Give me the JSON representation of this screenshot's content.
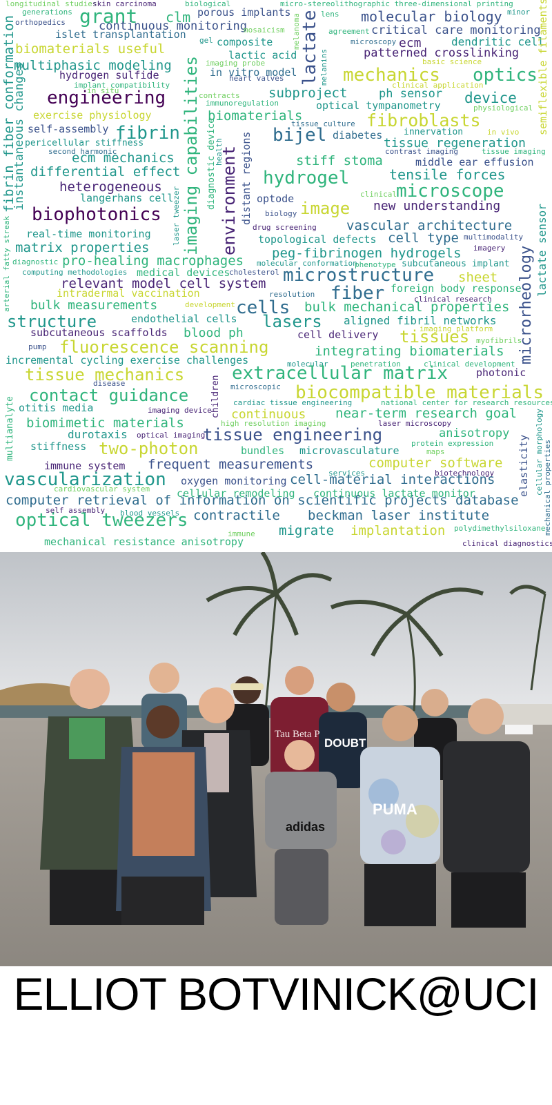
{
  "caption": "ELLIOT BOTVINICK@UCI",
  "photo": {
    "shirt_texts": [
      "Tau Beta P",
      "DOUBT",
      "adidas",
      "PUMA"
    ]
  },
  "palette": {
    "yellow": "#c8d632",
    "light_green": "#6fcf5f",
    "green": "#2fb47c",
    "teal": "#1f968b",
    "blue": "#2f6c8e",
    "indigo": "#3b528b",
    "purple": "#482475",
    "dark": "#440154"
  },
  "words": [
    {
      "t": "longitudinal studies",
      "s": 11,
      "c": "light_green"
    },
    {
      "t": "skin carcinoma",
      "s": 11,
      "c": "purple"
    },
    {
      "t": "biological",
      "s": 11,
      "c": "green"
    },
    {
      "t": "micro-stereolithographic three-dimensional printing",
      "s": 11,
      "c": "green"
    },
    {
      "t": "generations",
      "s": 11,
      "c": "green"
    },
    {
      "t": "grant",
      "s": 28,
      "c": "green"
    },
    {
      "t": "clm",
      "s": 20,
      "c": "green"
    },
    {
      "t": "porous implants",
      "s": 15,
      "c": "indigo"
    },
    {
      "t": "lens",
      "s": 11,
      "c": "green"
    },
    {
      "t": "molecular biology",
      "s": 20,
      "c": "indigo"
    },
    {
      "t": "minor",
      "s": 11,
      "c": "teal"
    },
    {
      "t": "orthopedics",
      "s": 11,
      "c": "indigo"
    },
    {
      "t": "continuous monitoring",
      "s": 17,
      "c": "indigo"
    },
    {
      "t": "mosaicism",
      "s": 11,
      "c": "light_green"
    },
    {
      "t": "agreement",
      "s": 11,
      "c": "green"
    },
    {
      "t": "critical care monitoring",
      "s": 17,
      "c": "indigo"
    },
    {
      "t": "islet transplantation",
      "s": 15,
      "c": "blue"
    },
    {
      "t": "gel",
      "s": 11,
      "c": "teal"
    },
    {
      "t": "composite",
      "s": 15,
      "c": "teal"
    },
    {
      "t": "microscopy",
      "s": 11,
      "c": "blue"
    },
    {
      "t": "ecm",
      "s": 18,
      "c": "purple"
    },
    {
      "t": "dendritic cell",
      "s": 16,
      "c": "teal"
    },
    {
      "t": "biomaterials useful",
      "s": 19,
      "c": "yellow"
    },
    {
      "t": "lactic acid",
      "s": 15,
      "c": "teal"
    },
    {
      "t": "patterned crosslinking",
      "s": 17,
      "c": "purple"
    },
    {
      "t": "multiphasic modeling",
      "s": 19,
      "c": "teal"
    },
    {
      "t": "imaging probe",
      "s": 11,
      "c": "light_green"
    },
    {
      "t": "basic science",
      "s": 11,
      "c": "yellow"
    },
    {
      "t": "hydrogen sulfide",
      "s": 15,
      "c": "purple"
    },
    {
      "t": "in vitro model",
      "s": 15,
      "c": "blue"
    },
    {
      "t": "mechanics",
      "s": 26,
      "c": "yellow"
    },
    {
      "t": "optics",
      "s": 26,
      "c": "green"
    },
    {
      "t": "heart valves",
      "s": 11,
      "c": "indigo"
    },
    {
      "t": "implant compatibility",
      "s": 11,
      "c": "green"
    },
    {
      "t": "clinical application",
      "s": 11,
      "c": "yellow"
    },
    {
      "t": "in situ",
      "s": 11,
      "c": "light_green"
    },
    {
      "t": "subproject",
      "s": 19,
      "c": "teal"
    },
    {
      "t": "ph sensor",
      "s": 17,
      "c": "teal"
    },
    {
      "t": "engineering",
      "s": 26,
      "c": "dark"
    },
    {
      "t": "contracts",
      "s": 11,
      "c": "light_green"
    },
    {
      "t": "device",
      "s": 21,
      "c": "teal"
    },
    {
      "t": "immunoregulation",
      "s": 11,
      "c": "green"
    },
    {
      "t": "optical tympanometry",
      "s": 15,
      "c": "teal"
    },
    {
      "t": "physiological",
      "s": 11,
      "c": "light_green"
    },
    {
      "t": "exercise physiology",
      "s": 15,
      "c": "yellow"
    },
    {
      "t": "biomaterials",
      "s": 19,
      "c": "green"
    },
    {
      "t": "tissue culture",
      "s": 11,
      "c": "blue"
    },
    {
      "t": "fibroblasts",
      "s": 25,
      "c": "yellow"
    },
    {
      "t": "self-assembly",
      "s": 15,
      "c": "indigo"
    },
    {
      "t": "fibrin",
      "s": 26,
      "c": "teal"
    },
    {
      "t": "bijel",
      "s": 26,
      "c": "blue"
    },
    {
      "t": "diabetes",
      "s": 15,
      "c": "blue"
    },
    {
      "t": "innervation",
      "s": 13,
      "c": "teal"
    },
    {
      "t": "in vivo",
      "s": 11,
      "c": "yellow"
    },
    {
      "t": "pericellular stiffness",
      "s": 13,
      "c": "teal"
    },
    {
      "t": "tissue regeneration",
      "s": 18,
      "c": "teal"
    },
    {
      "t": "second harmonic",
      "s": 11,
      "c": "blue"
    },
    {
      "t": "contrast imaging",
      "s": 11,
      "c": "indigo"
    },
    {
      "t": "tissue imaging",
      "s": 11,
      "c": "green"
    },
    {
      "t": "ecm mechanics",
      "s": 19,
      "c": "teal"
    },
    {
      "t": "stiff stoma",
      "s": 19,
      "c": "green"
    },
    {
      "t": "middle ear effusion",
      "s": 15,
      "c": "indigo"
    },
    {
      "t": "differential effect",
      "s": 19,
      "c": "teal"
    },
    {
      "t": "hydrogel",
      "s": 26,
      "c": "green"
    },
    {
      "t": "tensile forces",
      "s": 20,
      "c": "teal"
    },
    {
      "t": "heterogeneous",
      "s": 19,
      "c": "purple"
    },
    {
      "t": "clinical",
      "s": 11,
      "c": "light_green"
    },
    {
      "t": "microscope",
      "s": 26,
      "c": "green"
    },
    {
      "t": "langerhans cell",
      "s": 15,
      "c": "teal"
    },
    {
      "t": "optode",
      "s": 15,
      "c": "indigo"
    },
    {
      "t": "image",
      "s": 24,
      "c": "yellow"
    },
    {
      "t": "new understanding",
      "s": 18,
      "c": "purple"
    },
    {
      "t": "biophotonics",
      "s": 26,
      "c": "dark"
    },
    {
      "t": "biology",
      "s": 11,
      "c": "indigo"
    },
    {
      "t": "drug screening",
      "s": 11,
      "c": "purple"
    },
    {
      "t": "vascular architecture",
      "s": 19,
      "c": "blue"
    },
    {
      "t": "real-time monitoring",
      "s": 15,
      "c": "teal"
    },
    {
      "t": "cell type",
      "s": 19,
      "c": "blue"
    },
    {
      "t": "topological defects",
      "s": 15,
      "c": "teal"
    },
    {
      "t": "multimodality",
      "s": 11,
      "c": "indigo"
    },
    {
      "t": "matrix properties",
      "s": 19,
      "c": "teal"
    },
    {
      "t": "imagery",
      "s": 11,
      "c": "purple"
    },
    {
      "t": "peg-fibrinogen hydrogels",
      "s": 19,
      "c": "teal"
    },
    {
      "t": "diagnostic",
      "s": 11,
      "c": "green"
    },
    {
      "t": "pro-healing macrophages",
      "s": 19,
      "c": "green"
    },
    {
      "t": "molecular conformation",
      "s": 11,
      "c": "teal"
    },
    {
      "t": "phenotype",
      "s": 11,
      "c": "green"
    },
    {
      "t": "subcutaneous implant",
      "s": 13,
      "c": "teal"
    },
    {
      "t": "computing methodologies",
      "s": 11,
      "c": "teal"
    },
    {
      "t": "medical devices",
      "s": 15,
      "c": "green"
    },
    {
      "t": "cholesterol",
      "s": 11,
      "c": "indigo"
    },
    {
      "t": "microstructure",
      "s": 26,
      "c": "blue"
    },
    {
      "t": "sheet",
      "s": 19,
      "c": "yellow"
    },
    {
      "t": "relevant model cell system",
      "s": 19,
      "c": "purple"
    },
    {
      "t": "foreign body response",
      "s": 15,
      "c": "green"
    },
    {
      "t": "intradermal vaccination",
      "s": 15,
      "c": "yellow"
    },
    {
      "t": "resolution",
      "s": 11,
      "c": "blue"
    },
    {
      "t": "fiber",
      "s": 26,
      "c": "blue"
    },
    {
      "t": "clinical research",
      "s": 11,
      "c": "purple"
    },
    {
      "t": "development",
      "s": 11,
      "c": "yellow"
    },
    {
      "t": "bulk measurements",
      "s": 18,
      "c": "green"
    },
    {
      "t": "cells",
      "s": 26,
      "c": "blue"
    },
    {
      "t": "bulk mechanical properties",
      "s": 19,
      "c": "green"
    },
    {
      "t": "endothelial cells",
      "s": 15,
      "c": "teal"
    },
    {
      "t": "structure",
      "s": 24,
      "c": "teal"
    },
    {
      "t": "lasers",
      "s": 24,
      "c": "teal"
    },
    {
      "t": "aligned fibril networks",
      "s": 16,
      "c": "teal"
    },
    {
      "t": "imaging platform",
      "s": 11,
      "c": "yellow"
    },
    {
      "t": "subcutaneous scaffolds",
      "s": 15,
      "c": "purple"
    },
    {
      "t": "blood ph",
      "s": 18,
      "c": "green"
    },
    {
      "t": "cell delivery",
      "s": 15,
      "c": "purple"
    },
    {
      "t": "tissues",
      "s": 24,
      "c": "yellow"
    },
    {
      "t": "myofibrils",
      "s": 11,
      "c": "light_green"
    },
    {
      "t": "pump",
      "s": 11,
      "c": "indigo"
    },
    {
      "t": "fluorescence scanning",
      "s": 24,
      "c": "yellow"
    },
    {
      "t": "integrating biomaterials",
      "s": 19,
      "c": "green"
    },
    {
      "t": "incremental cycling exercise challenges",
      "s": 15,
      "c": "teal"
    },
    {
      "t": "molecular",
      "s": 11,
      "c": "teal"
    },
    {
      "t": "penetration",
      "s": 11,
      "c": "green"
    },
    {
      "t": "clinical development",
      "s": 11,
      "c": "green"
    },
    {
      "t": "tissue mechanics",
      "s": 24,
      "c": "yellow"
    },
    {
      "t": "extracellular matrix",
      "s": 26,
      "c": "green"
    },
    {
      "t": "photonic",
      "s": 15,
      "c": "purple"
    },
    {
      "t": "disease",
      "s": 11,
      "c": "indigo"
    },
    {
      "t": "microscopic",
      "s": 11,
      "c": "blue"
    },
    {
      "t": "biocompatible materials",
      "s": 26,
      "c": "yellow"
    },
    {
      "t": "contact guidance",
      "s": 24,
      "c": "green"
    },
    {
      "t": "cardiac tissue engineering",
      "s": 11,
      "c": "teal"
    },
    {
      "t": "national center for research resources",
      "s": 11,
      "c": "green"
    },
    {
      "t": "otitis media",
      "s": 15,
      "c": "teal"
    },
    {
      "t": "imaging device",
      "s": 11,
      "c": "purple"
    },
    {
      "t": "continuous",
      "s": 18,
      "c": "yellow"
    },
    {
      "t": "near-term research goal",
      "s": 19,
      "c": "green"
    },
    {
      "t": "biomimetic materials",
      "s": 19,
      "c": "green"
    },
    {
      "t": "high resolution imaging",
      "s": 11,
      "c": "light_green"
    },
    {
      "t": "laser microscopy",
      "s": 11,
      "c": "purple"
    },
    {
      "t": "durotaxis",
      "s": 16,
      "c": "teal"
    },
    {
      "t": "optical imaging",
      "s": 11,
      "c": "purple"
    },
    {
      "t": "tissue engineering",
      "s": 24,
      "c": "indigo"
    },
    {
      "t": "anisotropy",
      "s": 17,
      "c": "green"
    },
    {
      "t": "stiffness",
      "s": 15,
      "c": "teal"
    },
    {
      "t": "protein expression",
      "s": 11,
      "c": "green"
    },
    {
      "t": "two-photon",
      "s": 24,
      "c": "yellow"
    },
    {
      "t": "bundles",
      "s": 15,
      "c": "green"
    },
    {
      "t": "microvasculature",
      "s": 15,
      "c": "teal"
    },
    {
      "t": "maps",
      "s": 11,
      "c": "light_green"
    },
    {
      "t": "immune system",
      "s": 15,
      "c": "purple"
    },
    {
      "t": "frequent measurements",
      "s": 19,
      "c": "indigo"
    },
    {
      "t": "computer software",
      "s": 19,
      "c": "yellow"
    },
    {
      "t": "services",
      "s": 11,
      "c": "teal"
    },
    {
      "t": "biotechnology",
      "s": 11,
      "c": "purple"
    },
    {
      "t": "oxygen monitoring",
      "s": 15,
      "c": "indigo"
    },
    {
      "t": "vascularization",
      "s": 26,
      "c": "teal"
    },
    {
      "t": "cell-material interactions",
      "s": 19,
      "c": "blue"
    },
    {
      "t": "cardiovascular system",
      "s": 11,
      "c": "light_green"
    },
    {
      "t": "cellular remodeling",
      "s": 15,
      "c": "green"
    },
    {
      "t": "continuous lactate monitor",
      "s": 15,
      "c": "green"
    },
    {
      "t": "computer retrieval of information on scientific projects database",
      "s": 19,
      "c": "blue"
    },
    {
      "t": "self assembly",
      "s": 11,
      "c": "purple"
    },
    {
      "t": "blood vessels",
      "s": 11,
      "c": "teal"
    },
    {
      "t": "optical tweezers",
      "s": 26,
      "c": "green"
    },
    {
      "t": "contractile",
      "s": 19,
      "c": "blue"
    },
    {
      "t": "beckman laser institute",
      "s": 19,
      "c": "blue"
    },
    {
      "t": "immune",
      "s": 11,
      "c": "light_green"
    },
    {
      "t": "polydimethylsiloxane",
      "s": 11,
      "c": "green"
    },
    {
      "t": "migrate",
      "s": 19,
      "c": "teal"
    },
    {
      "t": "implantation",
      "s": 19,
      "c": "yellow"
    },
    {
      "t": "mechanical resistance anisotropy",
      "s": 15,
      "c": "green"
    },
    {
      "t": "clinical diagnostics",
      "s": 11,
      "c": "purple"
    },
    {
      "t": "fibrin fiber conformation",
      "s": 19,
      "c": "teal",
      "v": true
    },
    {
      "t": "instantaneous changes",
      "s": 17,
      "c": "teal",
      "v": true
    },
    {
      "t": "imaging capabilities",
      "s": 24,
      "c": "green",
      "v": true
    },
    {
      "t": "lactate",
      "s": 26,
      "c": "indigo",
      "v": true
    },
    {
      "t": "melanoma",
      "s": 11,
      "c": "light_green",
      "v": true
    },
    {
      "t": "melanins",
      "s": 11,
      "c": "teal",
      "v": true
    },
    {
      "t": "semiflexible filaments",
      "s": 15,
      "c": "yellow",
      "v": true
    },
    {
      "t": "environment",
      "s": 24,
      "c": "purple",
      "v": true
    },
    {
      "t": "diagnostic device",
      "s": 13,
      "c": "green",
      "v": true
    },
    {
      "t": "health",
      "s": 11,
      "c": "teal",
      "v": true
    },
    {
      "t": "distant regions",
      "s": 15,
      "c": "indigo",
      "v": true
    },
    {
      "t": "laser tweezer",
      "s": 11,
      "c": "teal",
      "v": true
    },
    {
      "t": "arterial fatty streak",
      "s": 11,
      "c": "green",
      "v": true
    },
    {
      "t": "microrheology",
      "s": 22,
      "c": "indigo",
      "v": true
    },
    {
      "t": "lactate sensor",
      "s": 16,
      "c": "teal",
      "v": true
    },
    {
      "t": "children",
      "s": 13,
      "c": "purple",
      "v": true
    },
    {
      "t": "multianalyte",
      "s": 13,
      "c": "green",
      "v": true
    },
    {
      "t": "elasticity",
      "s": 15,
      "c": "indigo",
      "v": true
    },
    {
      "t": "cellular morphology",
      "s": 11,
      "c": "teal",
      "v": true
    },
    {
      "t": "mechanical properties",
      "s": 11,
      "c": "blue",
      "v": true
    }
  ]
}
